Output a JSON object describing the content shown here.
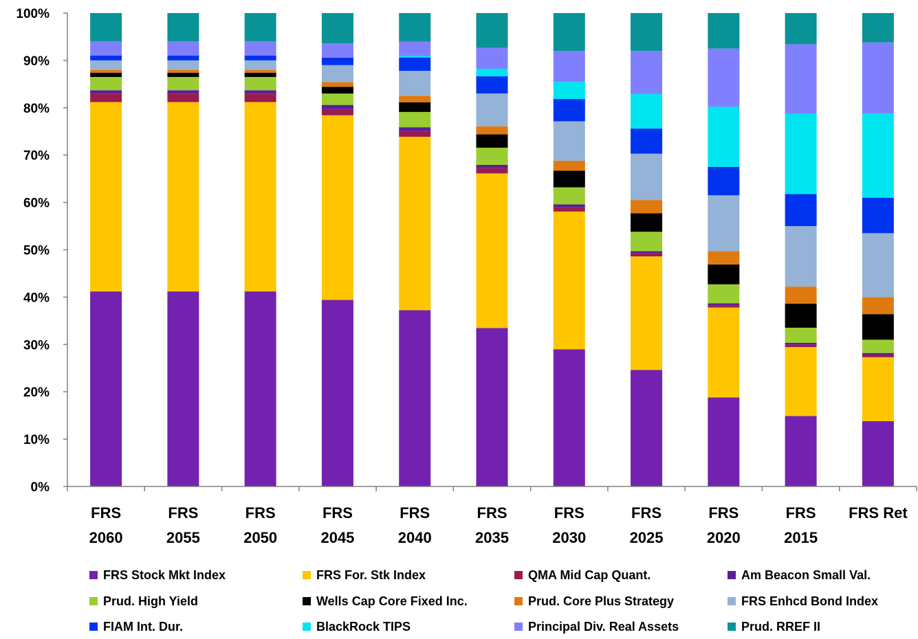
{
  "chart_data": {
    "type": "bar",
    "stacked": true,
    "normalized": true,
    "categories": [
      [
        "FRS",
        "2060"
      ],
      [
        "FRS",
        "2055"
      ],
      [
        "FRS",
        "2050"
      ],
      [
        "FRS",
        "2045"
      ],
      [
        "FRS",
        "2040"
      ],
      [
        "FRS",
        "2035"
      ],
      [
        "FRS",
        "2030"
      ],
      [
        "FRS",
        "2025"
      ],
      [
        "FRS",
        "2020"
      ],
      [
        "FRS",
        "2015"
      ],
      [
        "FRS Ret"
      ]
    ],
    "y_ticks": [
      "0%",
      "10%",
      "20%",
      "30%",
      "40%",
      "50%",
      "60%",
      "70%",
      "80%",
      "90%",
      "100%"
    ],
    "ylim": [
      0,
      100
    ],
    "grid": false,
    "legend_position": "bottom",
    "series": [
      {
        "name": "FRS  Stock Mkt Index",
        "color": "#7322B0",
        "values": [
          41.2,
          41.2,
          41.2,
          39.4,
          36.9,
          33.3,
          28.9,
          24.6,
          18.8,
          14.9,
          13.8
        ]
      },
      {
        "name": "FRS For. Stk Index",
        "color": "#FFC600",
        "values": [
          40.0,
          40.0,
          40.0,
          39.0,
          36.3,
          32.5,
          29.0,
          24.0,
          19.0,
          14.6,
          13.5
        ]
      },
      {
        "name": "QMA Mid Cap Quant.",
        "color": "#9A1B4E",
        "values": [
          1.8,
          1.8,
          1.8,
          1.3,
          1.2,
          1.1,
          0.9,
          0.7,
          0.5,
          0.5,
          0.5
        ]
      },
      {
        "name": "Am Beacon Small Val.",
        "color": "#5A1E9A",
        "values": [
          0.7,
          0.7,
          0.7,
          0.9,
          0.8,
          0.7,
          0.6,
          0.4,
          0.4,
          0.4,
          0.4
        ]
      },
      {
        "name": "Prud. High Yield",
        "color": "#9ACD32",
        "values": [
          2.8,
          2.8,
          2.8,
          2.4,
          3.2,
          3.6,
          3.6,
          4.1,
          4.0,
          3.2,
          2.8
        ]
      },
      {
        "name": "Wells Cap Core Fixed Inc.",
        "color": "#000000",
        "values": [
          0.9,
          0.9,
          0.9,
          1.4,
          2.0,
          2.8,
          3.5,
          3.9,
          4.2,
          5.1,
          5.4
        ]
      },
      {
        "name": "Prud. Core Plus Strategy",
        "color": "#E07A10",
        "values": [
          0.6,
          0.6,
          0.6,
          1.0,
          1.4,
          1.7,
          2.1,
          2.8,
          2.8,
          3.6,
          3.6
        ]
      },
      {
        "name": "FRS Enhcd Bond Index",
        "color": "#95B3D7",
        "values": [
          2.0,
          2.0,
          2.0,
          3.6,
          5.2,
          6.9,
          8.3,
          9.8,
          11.8,
          12.8,
          13.5
        ]
      },
      {
        "name": "FIAM Int. Dur.",
        "color": "#0033EE",
        "values": [
          1.0,
          1.0,
          1.0,
          1.6,
          2.8,
          3.6,
          4.7,
          5.3,
          6.0,
          6.8,
          7.5
        ]
      },
      {
        "name": "BlackRock TIPS",
        "color": "#00E5F0",
        "values": [
          0.0,
          0.0,
          0.0,
          0.0,
          0.3,
          1.6,
          3.6,
          7.3,
          12.7,
          17.0,
          17.8
        ]
      },
      {
        "name": "Principal Div. Real Assets",
        "color": "#8080FF",
        "values": [
          3.0,
          3.0,
          3.0,
          3.0,
          3.0,
          4.4,
          6.5,
          9.1,
          12.3,
          14.7,
          15.0
        ]
      },
      {
        "name": "Prud. RREF II",
        "color": "#0A9396",
        "values": [
          6.0,
          6.0,
          6.0,
          6.4,
          6.0,
          7.3,
          8.0,
          8.0,
          7.5,
          6.6,
          6.2
        ]
      }
    ]
  }
}
